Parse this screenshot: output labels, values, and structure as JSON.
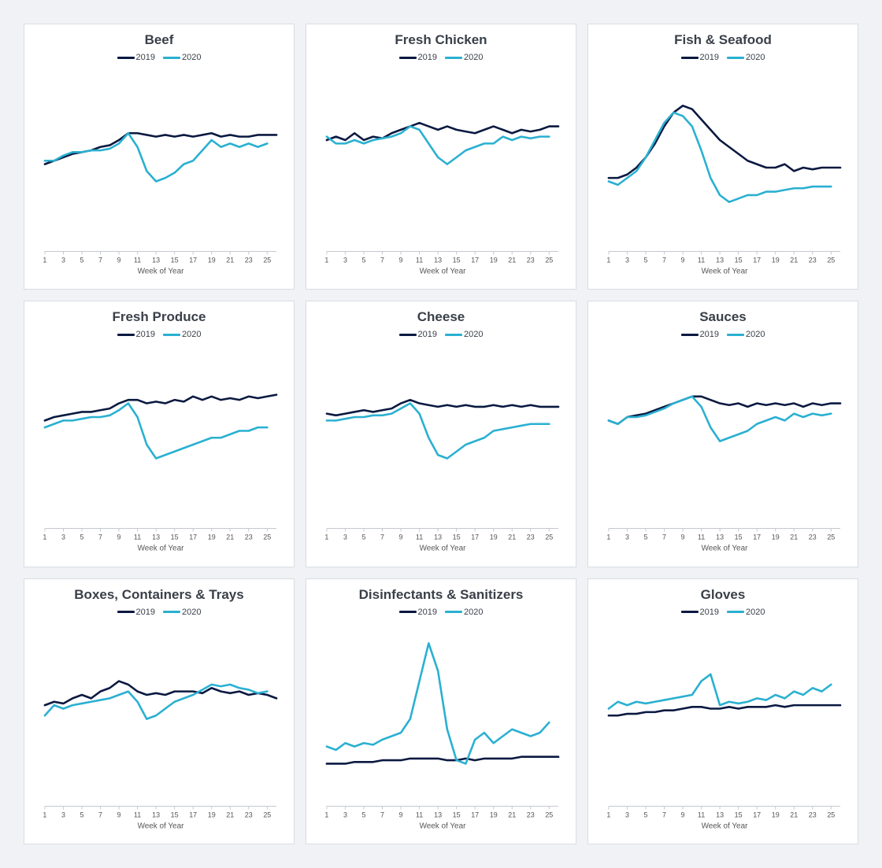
{
  "layout": {
    "rows": 3,
    "cols": 3,
    "background_color": "#f0f2f5",
    "panel_background": "#ffffff",
    "panel_border": "#d8dde2",
    "title_color": "#3a4049",
    "title_fontsize": 17,
    "legend_fontsize": 11,
    "xtick_fontsize": 9,
    "xlabel_fontsize": 10,
    "axis_color": "#c4c9cf",
    "line_width": 2.6
  },
  "x": {
    "label": "Week of Year",
    "ticks": [
      1,
      3,
      5,
      7,
      9,
      11,
      13,
      15,
      17,
      19,
      21,
      23,
      25
    ],
    "xlim": [
      1,
      26
    ]
  },
  "series_meta": [
    {
      "name": "2019",
      "color": "#0a1940"
    },
    {
      "name": "2020",
      "color": "#2ab0d1"
    }
  ],
  "ylim": [
    0,
    100
  ],
  "panels": [
    {
      "title": "Beef",
      "type": "line",
      "series": {
        "2019": [
          48,
          50,
          52,
          54,
          55,
          56,
          58,
          59,
          62,
          66,
          66,
          65,
          64,
          65,
          64,
          65,
          64,
          65,
          66,
          64,
          65,
          64,
          64,
          65,
          65,
          65
        ],
        "2020": [
          50,
          50,
          53,
          55,
          55,
          56,
          56,
          57,
          60,
          66,
          58,
          44,
          38,
          40,
          43,
          48,
          50,
          56,
          62,
          58,
          60,
          58,
          60,
          58,
          60,
          null
        ]
      }
    },
    {
      "title": "Fresh Chicken",
      "type": "line",
      "series": {
        "2019": [
          62,
          64,
          62,
          66,
          62,
          64,
          63,
          66,
          68,
          70,
          72,
          70,
          68,
          70,
          68,
          67,
          66,
          68,
          70,
          68,
          66,
          68,
          67,
          68,
          70,
          70
        ],
        "2020": [
          64,
          60,
          60,
          62,
          60,
          62,
          63,
          64,
          66,
          70,
          68,
          60,
          52,
          48,
          52,
          56,
          58,
          60,
          60,
          64,
          62,
          64,
          63,
          64,
          64,
          null
        ]
      }
    },
    {
      "title": "Fish & Seafood",
      "type": "line",
      "series": {
        "2019": [
          40,
          40,
          42,
          46,
          52,
          60,
          70,
          78,
          82,
          80,
          74,
          68,
          62,
          58,
          54,
          50,
          48,
          46,
          46,
          48,
          44,
          46,
          45,
          46,
          46,
          46
        ],
        "2020": [
          38,
          36,
          40,
          44,
          52,
          62,
          72,
          78,
          76,
          70,
          56,
          40,
          30,
          26,
          28,
          30,
          30,
          32,
          32,
          33,
          34,
          34,
          35,
          35,
          35,
          null
        ]
      }
    },
    {
      "title": "Fresh Produce",
      "type": "line",
      "series": {
        "2019": [
          60,
          62,
          63,
          64,
          65,
          65,
          66,
          67,
          70,
          72,
          72,
          70,
          71,
          70,
          72,
          71,
          74,
          72,
          74,
          72,
          73,
          72,
          74,
          73,
          74,
          75
        ],
        "2020": [
          56,
          58,
          60,
          60,
          61,
          62,
          62,
          63,
          66,
          70,
          62,
          46,
          38,
          40,
          42,
          44,
          46,
          48,
          50,
          50,
          52,
          54,
          54,
          56,
          56,
          null
        ]
      }
    },
    {
      "title": "Cheese",
      "type": "line",
      "series": {
        "2019": [
          64,
          63,
          64,
          65,
          66,
          65,
          66,
          67,
          70,
          72,
          70,
          69,
          68,
          69,
          68,
          69,
          68,
          68,
          69,
          68,
          69,
          68,
          69,
          68,
          68,
          68
        ],
        "2020": [
          60,
          60,
          61,
          62,
          62,
          63,
          63,
          64,
          67,
          70,
          64,
          50,
          40,
          38,
          42,
          46,
          48,
          50,
          54,
          55,
          56,
          57,
          58,
          58,
          58,
          null
        ]
      }
    },
    {
      "title": "Sauces",
      "type": "line",
      "series": {
        "2019": [
          60,
          58,
          62,
          63,
          64,
          66,
          68,
          70,
          72,
          74,
          74,
          72,
          70,
          69,
          70,
          68,
          70,
          69,
          70,
          69,
          70,
          68,
          70,
          69,
          70,
          70
        ],
        "2020": [
          60,
          58,
          62,
          62,
          63,
          65,
          67,
          70,
          72,
          74,
          68,
          56,
          48,
          50,
          52,
          54,
          58,
          60,
          62,
          60,
          64,
          62,
          64,
          63,
          64,
          null
        ]
      }
    },
    {
      "title": "Boxes, Containers & Trays",
      "type": "line",
      "series": {
        "2019": [
          56,
          58,
          57,
          60,
          62,
          60,
          64,
          66,
          70,
          68,
          64,
          62,
          63,
          62,
          64,
          64,
          64,
          63,
          66,
          64,
          63,
          64,
          62,
          63,
          62,
          60
        ],
        "2020": [
          50,
          56,
          54,
          56,
          57,
          58,
          59,
          60,
          62,
          64,
          58,
          48,
          50,
          54,
          58,
          60,
          62,
          65,
          68,
          67,
          68,
          66,
          65,
          63,
          64,
          null
        ]
      }
    },
    {
      "title": "Disinfectants & Sanitizers",
      "type": "line",
      "series": {
        "2019": [
          22,
          22,
          22,
          23,
          23,
          23,
          24,
          24,
          24,
          25,
          25,
          25,
          25,
          24,
          24,
          25,
          24,
          25,
          25,
          25,
          25,
          26,
          26,
          26,
          26,
          26
        ],
        "2020": [
          32,
          30,
          34,
          32,
          34,
          33,
          36,
          38,
          40,
          48,
          70,
          92,
          76,
          42,
          24,
          22,
          36,
          40,
          34,
          38,
          42,
          40,
          38,
          40,
          46,
          null
        ]
      }
    },
    {
      "title": "Gloves",
      "type": "line",
      "series": {
        "2019": [
          50,
          50,
          51,
          51,
          52,
          52,
          53,
          53,
          54,
          55,
          55,
          54,
          54,
          55,
          54,
          55,
          55,
          55,
          56,
          55,
          56,
          56,
          56,
          56,
          56,
          56
        ],
        "2020": [
          54,
          58,
          56,
          58,
          57,
          58,
          59,
          60,
          61,
          62,
          70,
          74,
          56,
          58,
          57,
          58,
          60,
          59,
          62,
          60,
          64,
          62,
          66,
          64,
          68,
          null
        ]
      }
    }
  ]
}
